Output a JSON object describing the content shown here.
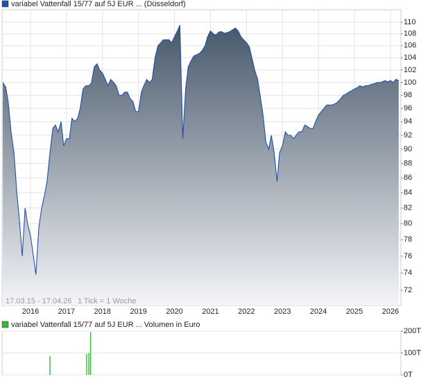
{
  "chart_data": [
    {
      "type": "area",
      "log": true,
      "grid": true,
      "annotations": [
        "17.03.15 - 17.04.26",
        "1 Tick = 1 Woche"
      ],
      "xlim": [
        2015.21,
        2026.29
      ],
      "xticks": [
        2016,
        2017,
        2018,
        2019,
        2020,
        2021,
        2022,
        2023,
        2024,
        2025,
        2026
      ],
      "ylim": [
        70.3,
        112.2
      ],
      "yticks": [
        72,
        74,
        76,
        78,
        80,
        82,
        84,
        86,
        88,
        90,
        92,
        94,
        96,
        98,
        100,
        102,
        104,
        106,
        108,
        110
      ],
      "x": [
        2015.23,
        2015.31,
        2015.38,
        2015.46,
        2015.54,
        2015.62,
        2015.69,
        2015.77,
        2015.85,
        2015.92,
        2016.0,
        2016.08,
        2016.15,
        2016.23,
        2016.31,
        2016.38,
        2016.46,
        2016.54,
        2016.62,
        2016.69,
        2016.77,
        2016.85,
        2016.92,
        2017.0,
        2017.08,
        2017.15,
        2017.23,
        2017.31,
        2017.38,
        2017.46,
        2017.54,
        2017.62,
        2017.69,
        2017.77,
        2017.85,
        2017.92,
        2018.0,
        2018.08,
        2018.15,
        2018.23,
        2018.31,
        2018.38,
        2018.46,
        2018.54,
        2018.62,
        2018.69,
        2018.77,
        2018.85,
        2018.92,
        2019.0,
        2019.08,
        2019.15,
        2019.23,
        2019.31,
        2019.38,
        2019.46,
        2019.54,
        2019.62,
        2019.69,
        2019.77,
        2019.85,
        2019.92,
        2020.0,
        2020.08,
        2020.15,
        2020.23,
        2020.31,
        2020.38,
        2020.46,
        2020.54,
        2020.62,
        2020.69,
        2020.77,
        2020.85,
        2020.92,
        2021.0,
        2021.08,
        2021.15,
        2021.23,
        2021.31,
        2021.38,
        2021.46,
        2021.54,
        2021.62,
        2021.69,
        2021.77,
        2021.85,
        2021.92,
        2022.0,
        2022.08,
        2022.15,
        2022.23,
        2022.31,
        2022.38,
        2022.46,
        2022.54,
        2022.62,
        2022.69,
        2022.77,
        2022.85,
        2022.92,
        2023.0,
        2023.08,
        2023.15,
        2023.23,
        2023.31,
        2023.38,
        2023.46,
        2023.54,
        2023.62,
        2023.69,
        2023.77,
        2023.85,
        2023.92,
        2024.0,
        2024.08,
        2024.15,
        2024.23,
        2024.31,
        2024.38,
        2024.46,
        2024.54,
        2024.62,
        2024.69,
        2024.77,
        2024.85,
        2024.92,
        2025.0,
        2025.08,
        2025.15,
        2025.23,
        2025.31,
        2025.38,
        2025.46,
        2025.54,
        2025.62,
        2025.69,
        2025.77,
        2025.85,
        2025.92,
        2026.0,
        2026.08,
        2026.15,
        2026.23
      ],
      "series": [
        {
          "name": "variabel Vattenfall 15/77 auf 5J EUR ... (Düsseldorf)",
          "color": "#1f4fa8",
          "values": [
            100,
            99.3,
            97,
            92.5,
            89.5,
            84,
            80.5,
            76,
            82,
            80,
            78.5,
            76,
            73.8,
            79.5,
            82,
            83.5,
            85.5,
            89.5,
            93,
            93.5,
            92.5,
            94,
            90.5,
            91.5,
            91.5,
            94.5,
            94,
            94.5,
            96,
            99,
            99.5,
            99.5,
            99.9,
            102.5,
            103,
            102,
            101.5,
            100.5,
            99.5,
            100.5,
            100,
            99.5,
            98,
            98,
            98.5,
            98.5,
            97.5,
            97,
            95.5,
            95.5,
            98.5,
            99.5,
            100.5,
            100,
            100.5,
            104,
            106,
            106.5,
            107,
            107,
            107,
            106.5,
            107.5,
            108.5,
            109.5,
            91.5,
            99,
            102.5,
            103.5,
            104.3,
            104.5,
            104.7,
            105.2,
            106,
            107.5,
            108.5,
            108,
            107.8,
            108.3,
            108.4,
            108.1,
            108.2,
            108.4,
            108.7,
            109,
            108.5,
            107.5,
            107,
            106.5,
            105.8,
            104,
            102,
            100.5,
            98,
            95,
            91,
            90,
            92,
            89.5,
            85.5,
            89.5,
            90.5,
            92.5,
            92,
            92,
            91.5,
            92,
            92.5,
            92.5,
            93.5,
            93.3,
            93,
            93,
            94,
            95,
            95.5,
            96,
            96.5,
            96.5,
            96.5,
            96.7,
            97,
            97.5,
            98,
            98.2,
            98.5,
            98.7,
            99,
            99.2,
            99.5,
            99.3,
            99.5,
            99.5,
            99.7,
            99.8,
            100,
            100,
            100.1,
            100.3,
            100.1,
            100.3,
            100,
            100.5,
            100.3
          ]
        }
      ]
    },
    {
      "type": "bar",
      "grid": true,
      "xlim": [
        2015.21,
        2026.29
      ],
      "ylim": [
        0,
        200000
      ],
      "yticks": [
        {
          "value": 0,
          "label": "0T"
        },
        {
          "value": 100000,
          "label": "100T"
        },
        {
          "value": 200000,
          "label": "200T"
        }
      ],
      "x": [
        2016.54,
        2017.56,
        2017.62,
        2017.67
      ],
      "series": [
        {
          "name": "variabel Vattenfall 15/77 auf 5J EUR ... Volumen in Euro",
          "color": "#33b833",
          "values": [
            85000,
            95000,
            100000,
            195000
          ]
        }
      ]
    }
  ]
}
